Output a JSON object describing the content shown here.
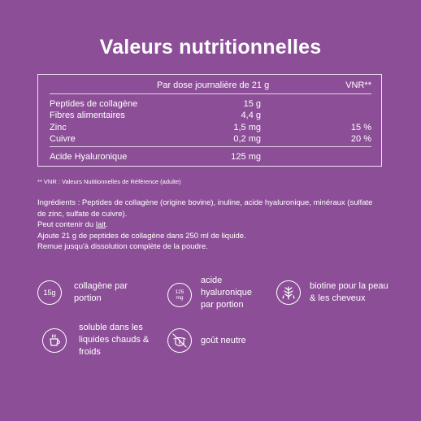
{
  "title": "Valeurs nutritionnelles",
  "table": {
    "header_dose": "Par dose journalière de 21 g",
    "header_vnr": "VNR**",
    "rows": [
      {
        "name": "Peptides de collagène",
        "qty": "15 g",
        "vnr": ""
      },
      {
        "name": "Fibres alimentaires",
        "qty": "4,4 g",
        "vnr": ""
      },
      {
        "name": "Zinc",
        "qty": "1,5 mg",
        "vnr": "15 %"
      },
      {
        "name": "Cuivre",
        "qty": "0,2 mg",
        "vnr": "20 %"
      },
      {
        "name": "Acide Hyaluronique",
        "qty": "125 mg",
        "vnr": ""
      }
    ]
  },
  "footnote": "** VNR : Valeurs Nutitionnelles de Référence (adulte)",
  "ingredients": {
    "line1": "Ingrédients : Peptides de collagène (origine bovine), inuline, acide hyaluronique, minéraux (sulfate de zinc, sulfate de cuivre).",
    "may_contain_prefix": " Peut contenir du ",
    "may_contain_allergen": "lait",
    "may_contain_suffix": ".",
    "line3": "Ajoute 21 g de peptides de collagène dans 250 ml de liquide.",
    "line4": " Remue jusqu'à dissolution complète de la poudre."
  },
  "features": [
    {
      "icon": "collagen-dose-icon",
      "icon_text": "15g",
      "label": "collagène par portion"
    },
    {
      "icon": "hyaluronic-dose-icon",
      "icon_text_line1": "125",
      "icon_text_line2": "mg",
      "label": "acide hyaluronique par portion"
    },
    {
      "icon": "biotin-plant-icon",
      "label": "biotine pour la peau & les cheveux"
    },
    {
      "icon": "hot-cup-icon",
      "label": "soluble dans les liquides chauds & froids"
    },
    {
      "icon": "tongue-taste-icon",
      "label": "goût neutre"
    }
  ]
}
